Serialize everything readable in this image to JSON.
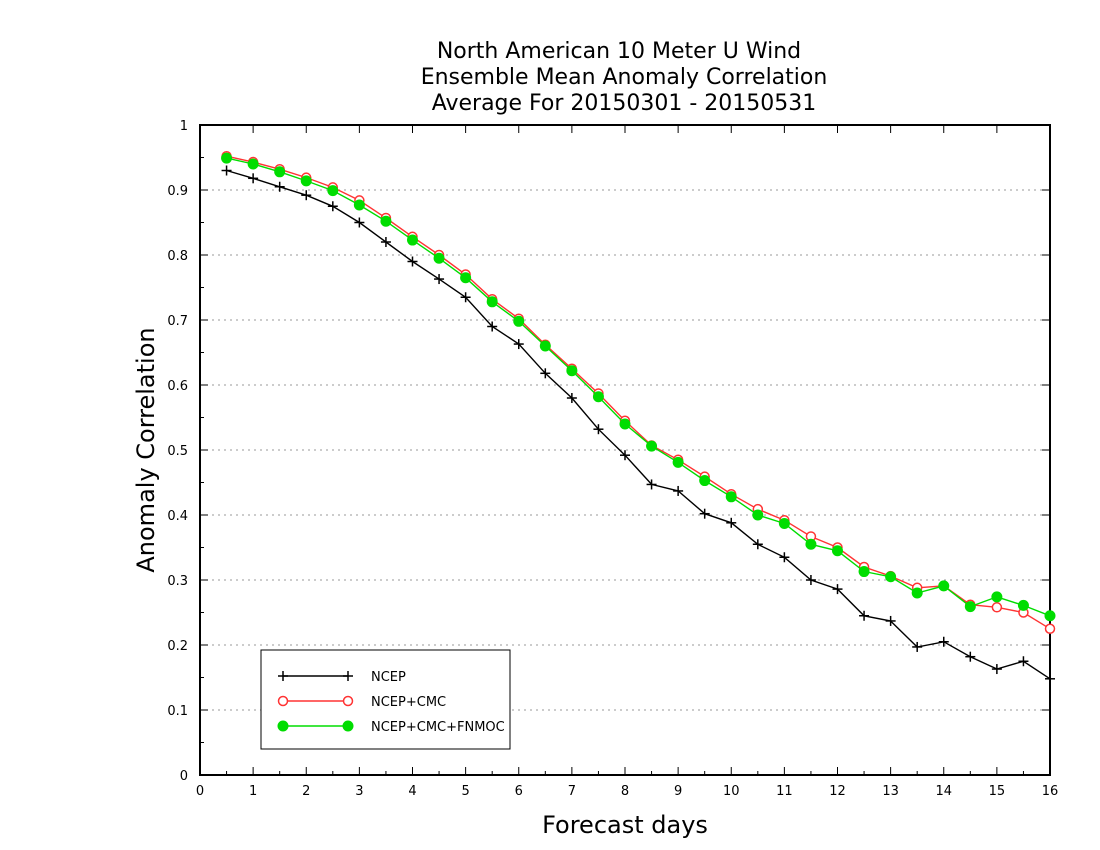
{
  "chart_data": {
    "type": "line",
    "title_lines": [
      "North American 10 Meter U Wind",
      "Ensemble Mean Anomaly Correlation",
      "Average For 20150301 - 20150531"
    ],
    "xlabel": "Forecast days",
    "ylabel": "Anomaly Correlation",
    "xlim": [
      0,
      16
    ],
    "ylim": [
      0,
      1
    ],
    "x_ticks": [
      "0",
      "1",
      "2",
      "3",
      "4",
      "5",
      "6",
      "7",
      "8",
      "9",
      "10",
      "11",
      "12",
      "13",
      "14",
      "15",
      "16"
    ],
    "y_ticks": [
      "0",
      "0.1",
      "0.2",
      "0.3",
      "0.4",
      "0.5",
      "0.6",
      "0.7",
      "0.8",
      "0.9",
      "1"
    ],
    "grid": "horizontal dotted",
    "legend_position": "bottom-left",
    "x": [
      0.5,
      1,
      1.5,
      2,
      2.5,
      3,
      3.5,
      4,
      4.5,
      5,
      5.5,
      6,
      6.5,
      7,
      7.5,
      8,
      8.5,
      9,
      9.5,
      10,
      10.5,
      11,
      11.5,
      12,
      12.5,
      13,
      13.5,
      14,
      14.5,
      15,
      15.5,
      16
    ],
    "series": [
      {
        "name": "NCEP",
        "color": "#000000",
        "marker": "plus",
        "values": [
          0.93,
          0.918,
          0.905,
          0.892,
          0.875,
          0.85,
          0.82,
          0.79,
          0.763,
          0.735,
          0.69,
          0.663,
          0.618,
          0.58,
          0.532,
          0.492,
          0.447,
          0.437,
          0.402,
          0.388,
          0.355,
          0.335,
          0.3,
          0.286,
          0.245,
          0.237,
          0.197,
          0.205,
          0.182,
          0.163,
          0.175,
          0.148
        ]
      },
      {
        "name": "NCEP+CMC",
        "color": "#ff3333",
        "marker": "open-circle",
        "values": [
          0.952,
          0.943,
          0.932,
          0.919,
          0.904,
          0.884,
          0.857,
          0.828,
          0.8,
          0.77,
          0.732,
          0.702,
          0.662,
          0.625,
          0.587,
          0.545,
          0.507,
          0.485,
          0.459,
          0.432,
          0.409,
          0.392,
          0.367,
          0.35,
          0.32,
          0.306,
          0.288,
          0.291,
          0.262,
          0.258,
          0.25,
          0.225
        ]
      },
      {
        "name": "NCEP+CMC+FNMOC",
        "color": "#00dd00",
        "marker": "filled-circle",
        "values": [
          0.949,
          0.94,
          0.928,
          0.914,
          0.899,
          0.877,
          0.852,
          0.823,
          0.795,
          0.765,
          0.728,
          0.698,
          0.66,
          0.622,
          0.582,
          0.54,
          0.506,
          0.481,
          0.453,
          0.428,
          0.4,
          0.387,
          0.355,
          0.345,
          0.313,
          0.305,
          0.28,
          0.291,
          0.259,
          0.274,
          0.261,
          0.245
        ]
      }
    ]
  }
}
